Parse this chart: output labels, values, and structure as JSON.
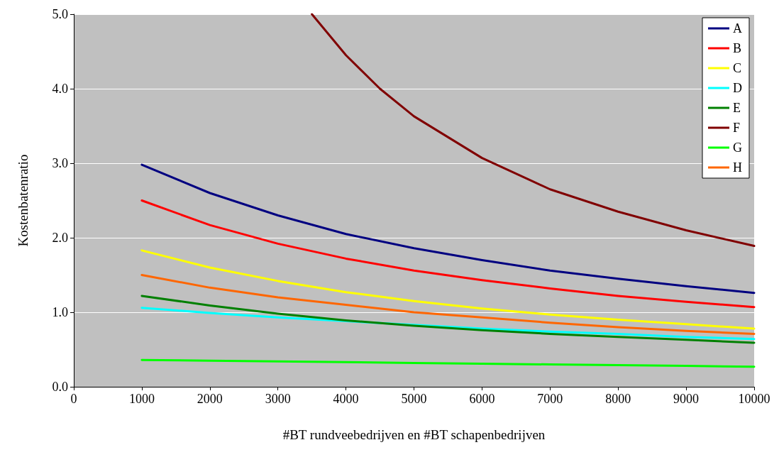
{
  "chart_data": {
    "type": "line",
    "xlabel": "#BT rundveebedrijven en #BT schapenbedrijven",
    "ylabel": "Kostenbatenratio",
    "x": [
      1000,
      2000,
      3000,
      4000,
      5000,
      6000,
      7000,
      8000,
      9000,
      10000
    ],
    "xlim": [
      0,
      10000
    ],
    "xticks": [
      0,
      1000,
      2000,
      3000,
      4000,
      5000,
      6000,
      7000,
      8000,
      9000,
      10000
    ],
    "ylim": [
      0,
      5
    ],
    "yticks": [
      {
        "value": 0,
        "label": "0.0"
      },
      {
        "value": 1,
        "label": "1.0"
      },
      {
        "value": 2,
        "label": "2.0"
      },
      {
        "value": 3,
        "label": "3.0"
      },
      {
        "value": 4,
        "label": "4.0"
      },
      {
        "value": 5,
        "label": "5.0"
      }
    ],
    "grid": "y",
    "legend": "top right",
    "marker": "none",
    "line_style": "solid",
    "series": [
      {
        "name": "A",
        "color": "#000080",
        "values": [
          2.98,
          2.6,
          2.3,
          2.05,
          1.86,
          1.7,
          1.56,
          1.45,
          1.35,
          1.26
        ]
      },
      {
        "name": "B",
        "color": "#ff0000",
        "values": [
          2.5,
          2.17,
          1.92,
          1.72,
          1.56,
          1.43,
          1.32,
          1.22,
          1.14,
          1.07
        ]
      },
      {
        "name": "C",
        "color": "#ffff00",
        "values": [
          1.83,
          1.6,
          1.42,
          1.27,
          1.15,
          1.05,
          0.97,
          0.9,
          0.84,
          0.78
        ]
      },
      {
        "name": "D",
        "color": "#00ffff",
        "values": [
          1.06,
          0.99,
          0.93,
          0.88,
          0.83,
          0.78,
          0.74,
          0.71,
          0.67,
          0.64
        ]
      },
      {
        "name": "E",
        "color": "#008000",
        "values": [
          1.22,
          1.09,
          0.98,
          0.89,
          0.82,
          0.76,
          0.71,
          0.67,
          0.63,
          0.59
        ]
      },
      {
        "name": "F",
        "color": "#800000",
        "x": [
          3500,
          4000,
          4500,
          5000,
          6000,
          7000,
          8000,
          9000,
          10000
        ],
        "values": [
          5.0,
          4.45,
          4.0,
          3.63,
          3.07,
          2.65,
          2.35,
          2.1,
          1.89
        ]
      },
      {
        "name": "G",
        "color": "#00ff00",
        "values": [
          0.36,
          0.35,
          0.34,
          0.33,
          0.32,
          0.31,
          0.3,
          0.29,
          0.28,
          0.27
        ]
      },
      {
        "name": "H",
        "color": "#ff6600",
        "values": [
          1.5,
          1.33,
          1.2,
          1.1,
          1.0,
          0.93,
          0.86,
          0.8,
          0.75,
          0.71
        ]
      }
    ]
  }
}
